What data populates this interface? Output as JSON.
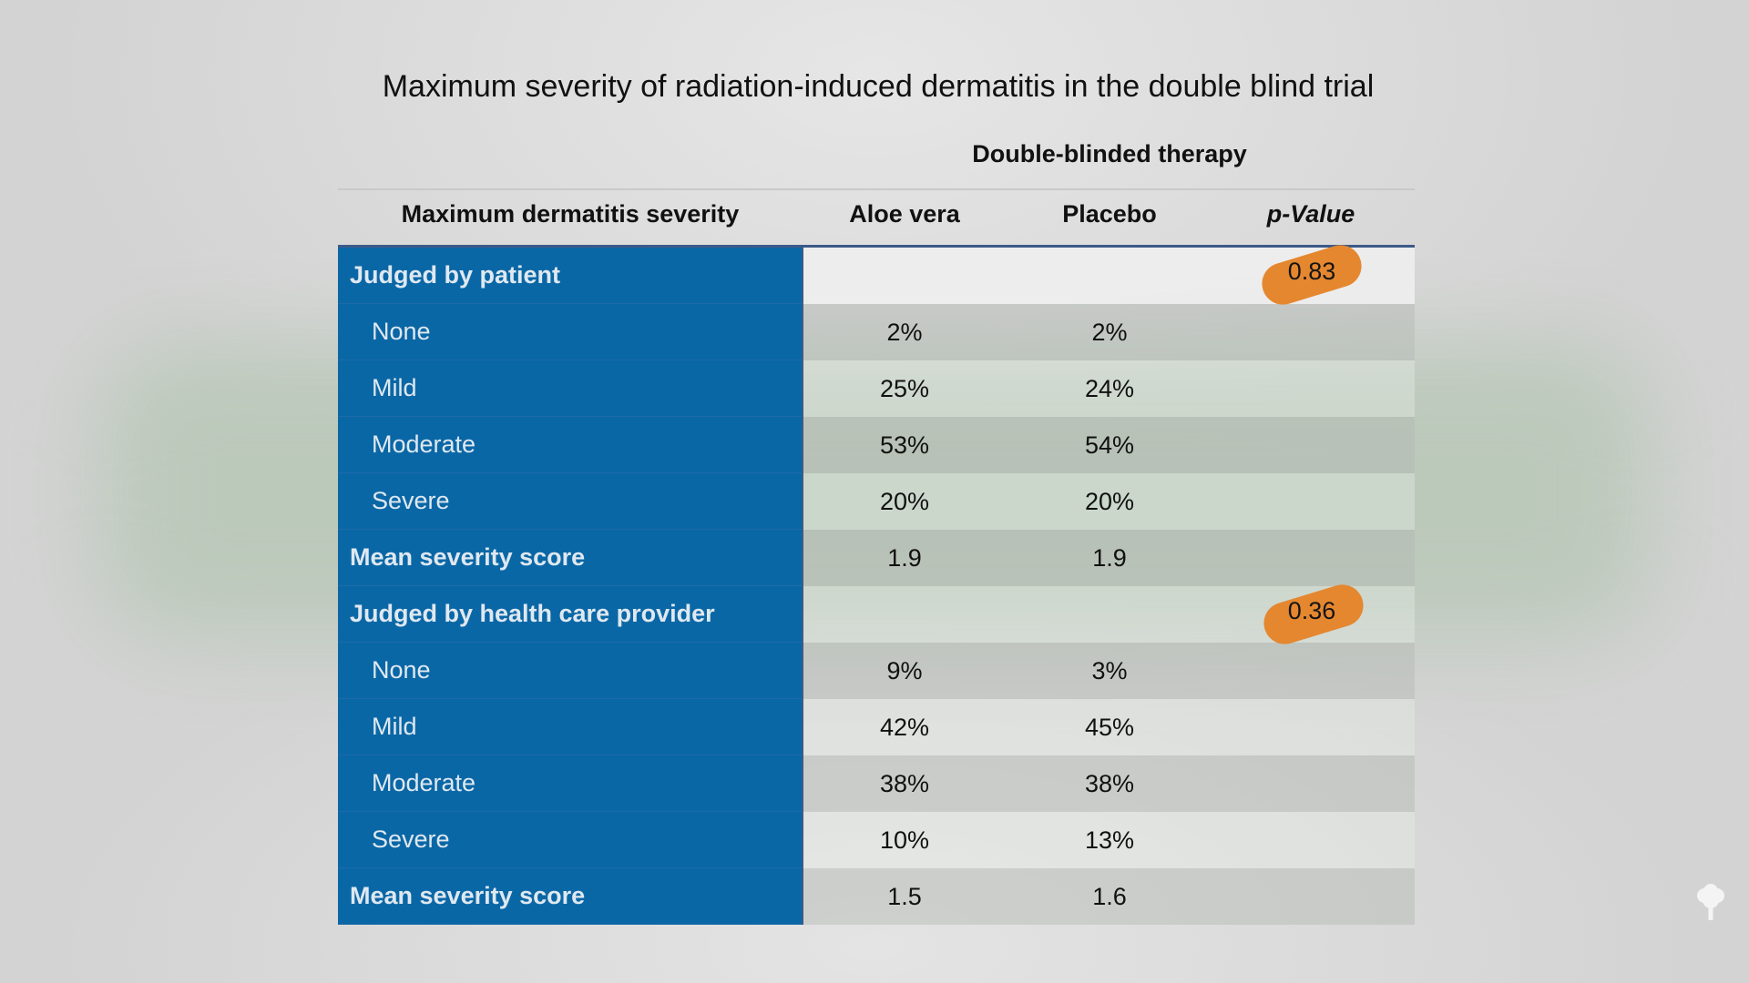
{
  "title": "Maximum severity of radiation-induced dermatitis in the double blind trial",
  "group_header": "Double-blinded therapy",
  "columns": {
    "severity": "Maximum dermatitis severity",
    "aloe": "Aloe vera",
    "placebo": "Placebo",
    "p_value": "p-Value"
  },
  "rows": [
    {
      "label": "Judged by patient",
      "aloe": "",
      "placebo": "",
      "p": "0.83"
    },
    {
      "label": "None",
      "aloe": "2%",
      "placebo": "2%",
      "p": ""
    },
    {
      "label": "Mild",
      "aloe": "25%",
      "placebo": "24%",
      "p": ""
    },
    {
      "label": "Moderate",
      "aloe": "53%",
      "placebo": "54%",
      "p": ""
    },
    {
      "label": "Severe",
      "aloe": "20%",
      "placebo": "20%",
      "p": ""
    },
    {
      "label": "Mean severity score",
      "aloe": "1.9",
      "placebo": "1.9",
      "p": ""
    },
    {
      "label": "Judged by health care provider",
      "aloe": "",
      "placebo": "",
      "p": "0.36"
    },
    {
      "label": "None",
      "aloe": "9%",
      "placebo": "3%",
      "p": ""
    },
    {
      "label": "Mild",
      "aloe": "42%",
      "placebo": "45%",
      "p": ""
    },
    {
      "label": "Moderate",
      "aloe": "38%",
      "placebo": "38%",
      "p": ""
    },
    {
      "label": "Severe",
      "aloe": "10%",
      "placebo": "13%",
      "p": ""
    },
    {
      "label": "Mean severity score",
      "aloe": "1.5",
      "placebo": "1.6",
      "p": ""
    }
  ],
  "colors": {
    "label_column": "#0a67a6",
    "highlight_pill": "#e5872f",
    "rule": "#3d5a88"
  },
  "icons": {
    "corner_logo": "tree-icon"
  }
}
